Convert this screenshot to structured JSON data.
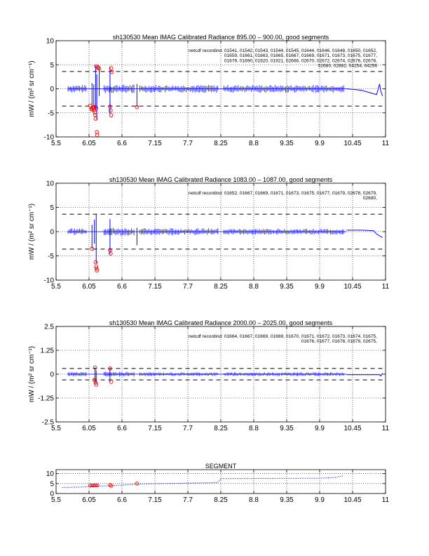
{
  "figure": {
    "xticks": [
      "5.5",
      "6.05",
      "6.6",
      "7.15",
      "7.7",
      "8.25",
      "8.8",
      "9.35",
      "9.9",
      "10.45",
      "11"
    ],
    "trace_color": "#0000ff",
    "marker_color": "#ff0000",
    "threshold_color": "#000000"
  },
  "chart_data": [
    {
      "type": "line",
      "title": "sh130530 Mean IMAG Calibrated Radiance 895.00 – 900.00, good segments",
      "annotation_lines": [
        "netcdf recordind: 01541, 01542, 01543, 01544, 01545, 01644, 01646, 01648, 01650, 01652,",
        "01659, 01661, 01663, 01665, 01667, 01669, 01671, 01673, 01675, 01677,",
        "01679, 01690, 01920, 01921, 02666, 02670, 02672, 02674, 02676, 02678,",
        "02680, 02682, 04254, 04256"
      ],
      "ylabel": "mW / (m² sr cm⁻¹)",
      "xlim": [
        5.5,
        11
      ],
      "ylim": [
        -10,
        10
      ],
      "yticks": [
        "-10",
        "-5",
        "0",
        "5",
        "10"
      ],
      "threshold": 3.6,
      "clusters": [
        {
          "start": 5.7,
          "end": 6.0,
          "amp": 0.8
        },
        {
          "start": 6.3,
          "end": 6.8,
          "amp": 0.9
        },
        {
          "start": 6.9,
          "end": 8.2,
          "amp": 0.8
        },
        {
          "start": 8.3,
          "end": 10.3,
          "amp": 0.8
        }
      ],
      "spikes": [
        {
          "x": 6.1,
          "low": -4,
          "high": 1.2
        },
        {
          "x": 6.13,
          "low": -3.6,
          "high": 0.9
        },
        {
          "x": 6.16,
          "low": -4.5,
          "high": 4.8
        },
        {
          "x": 6.18,
          "low": -6.5,
          "high": 3
        },
        {
          "x": 6.22,
          "low": -1.5,
          "high": 4.5
        },
        {
          "x": 6.4,
          "low": -5.2,
          "high": 4.6
        },
        {
          "x": 6.85,
          "low": -3.8,
          "high": 1
        }
      ],
      "tail": [
        [
          10.35,
          0
        ],
        [
          10.6,
          -0.3
        ],
        [
          10.85,
          -1.2
        ],
        [
          10.9,
          1
        ],
        [
          10.92,
          -0.5
        ],
        [
          10.95,
          -1.5
        ]
      ],
      "markers": [
        [
          6.07,
          -3.5
        ],
        [
          6.09,
          -4.2
        ],
        [
          6.1,
          -4.3
        ],
        [
          6.11,
          -3.9
        ],
        [
          6.12,
          -4
        ],
        [
          6.13,
          -4.4
        ],
        [
          6.14,
          -3.8
        ],
        [
          6.15,
          -4.9
        ],
        [
          6.15,
          -5.4
        ],
        [
          6.16,
          -6.2
        ],
        [
          6.17,
          -4
        ],
        [
          6.17,
          4.7
        ],
        [
          6.18,
          -9
        ],
        [
          6.185,
          -9.6
        ],
        [
          6.19,
          4.4
        ],
        [
          6.2,
          4.5
        ],
        [
          6.22,
          4.2
        ],
        [
          6.4,
          -3.7
        ],
        [
          6.41,
          -4.5
        ],
        [
          6.42,
          -5.5
        ],
        [
          6.42,
          4.3
        ],
        [
          6.43,
          3.5
        ],
        [
          6.85,
          -3.8
        ]
      ]
    },
    {
      "type": "line",
      "title": "sh130530 Mean IMAG Calibrated Radiance 1083.00 – 1087.00, good segments",
      "annotation_lines": [
        "netcdf recordind: 01652, 01667, 01669, 01671, 01673, 01675, 01677, 01679, 02678, 02679,",
        "02680,"
      ],
      "ylabel": "mW / (m² sr cm⁻¹)",
      "xlim": [
        5.5,
        11
      ],
      "ylim": [
        -10,
        10
      ],
      "yticks": [
        "-10",
        "-5",
        "0",
        "5",
        "10"
      ],
      "threshold": 3.6,
      "clusters": [
        {
          "start": 5.7,
          "end": 6.0,
          "amp": 0.7
        },
        {
          "start": 6.3,
          "end": 6.8,
          "amp": 0.8
        },
        {
          "start": 6.9,
          "end": 8.2,
          "amp": 0.7
        },
        {
          "start": 8.3,
          "end": 10.3,
          "amp": 0.6
        }
      ],
      "spikes": [
        {
          "x": 6.1,
          "low": -3.5,
          "high": 1.4
        },
        {
          "x": 6.14,
          "low": -2.5,
          "high": 2.5
        },
        {
          "x": 6.17,
          "low": -6.5,
          "high": 3.6
        },
        {
          "x": 6.4,
          "low": -4.6,
          "high": 2.6
        },
        {
          "x": 6.85,
          "low": -2.8,
          "high": 0.8
        }
      ],
      "tail": [
        [
          10.35,
          0.3
        ],
        [
          10.6,
          0.3
        ],
        [
          10.8,
          0.2
        ],
        [
          10.85,
          -0.5
        ],
        [
          10.95,
          -1.2
        ]
      ],
      "markers": [
        [
          6.1,
          -3.5
        ],
        [
          6.16,
          -6.3
        ],
        [
          6.17,
          -7.2
        ],
        [
          6.175,
          -7.6
        ],
        [
          6.18,
          -8
        ],
        [
          6.4,
          -3.8
        ],
        [
          6.41,
          -4.5
        ]
      ]
    },
    {
      "type": "line",
      "title": "sh130530 Mean IMAG Calibrated Radiance 2000.00 – 2025.00, good segments",
      "annotation_lines": [
        "netcdf recordind: 01664, 01667, 01669, 01669, 01670, 01671, 01672, 01673, 01674, 01675,",
        "01676, 01677, 01678, 01679, 02675,"
      ],
      "ylabel": "mW / (m² sr cm⁻¹)",
      "xlim": [
        5.5,
        11
      ],
      "ylim": [
        -2.5,
        2.5
      ],
      "yticks": [
        "-2.5",
        "-1.25",
        "0",
        "1.25",
        "2.5"
      ],
      "threshold": 0.3,
      "clusters": [
        {
          "start": 5.7,
          "end": 6.0,
          "amp": 0.12
        },
        {
          "start": 6.3,
          "end": 6.8,
          "amp": 0.13
        },
        {
          "start": 6.9,
          "end": 8.2,
          "amp": 0.1
        },
        {
          "start": 8.3,
          "end": 10.3,
          "amp": 0.1
        }
      ],
      "spikes": [
        {
          "x": 6.15,
          "low": -0.5,
          "high": 0.35
        },
        {
          "x": 6.17,
          "low": -0.45,
          "high": 0.2
        },
        {
          "x": 6.4,
          "low": -0.4,
          "high": 0.3
        }
      ],
      "tail": [
        [
          10.35,
          -0.03
        ],
        [
          10.9,
          -0.03
        ],
        [
          10.92,
          -0.1
        ],
        [
          10.95,
          0.05
        ]
      ],
      "markers": [
        [
          6.14,
          -0.3
        ],
        [
          6.15,
          0.35
        ],
        [
          6.16,
          -0.45
        ],
        [
          6.17,
          -0.55
        ],
        [
          6.4,
          0.3
        ],
        [
          6.42,
          -0.4
        ]
      ]
    },
    {
      "type": "scatter",
      "title": "SEGMENT",
      "xlim": [
        5.5,
        11
      ],
      "ylim": [
        0,
        12
      ],
      "yticks": [
        "0",
        "5",
        "10"
      ],
      "trace": [
        [
          5.6,
          3
        ],
        [
          6.0,
          3.3
        ],
        [
          6.05,
          3.6
        ],
        [
          6.3,
          3.8
        ],
        [
          6.6,
          4.2
        ],
        [
          6.9,
          4.8
        ],
        [
          7.5,
          5.1
        ],
        [
          8.2,
          5.5
        ],
        [
          8.25,
          7.5
        ],
        [
          9.0,
          7.6
        ],
        [
          9.9,
          7.7
        ],
        [
          10.2,
          8.2
        ],
        [
          10.3,
          9
        ]
      ],
      "markers": [
        [
          6.07,
          4
        ],
        [
          6.1,
          4.1
        ],
        [
          6.13,
          4
        ],
        [
          6.16,
          4.2
        ],
        [
          6.19,
          4.1
        ],
        [
          6.4,
          4.3
        ],
        [
          6.42,
          3.9
        ],
        [
          6.85,
          5
        ]
      ]
    }
  ]
}
